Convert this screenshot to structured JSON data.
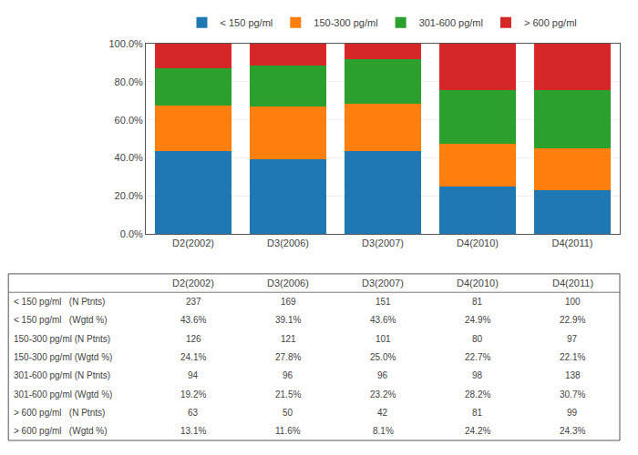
{
  "chart_data": {
    "type": "bar",
    "stacked": true,
    "categories": [
      "D2(2002)",
      "D3(2006)",
      "D3(2007)",
      "D4(2010)",
      "D4(2011)"
    ],
    "series": [
      {
        "name": "< 150 pg/ml",
        "values": [
          43.6,
          39.1,
          43.6,
          24.9,
          22.9
        ]
      },
      {
        "name": "150-300 pg/ml",
        "values": [
          24.1,
          27.8,
          25.0,
          22.7,
          22.1
        ]
      },
      {
        "name": "301-600 pg/ml",
        "values": [
          19.2,
          21.5,
          23.2,
          28.2,
          30.7
        ]
      },
      {
        "name": "> 600 pg/ml",
        "values": [
          13.1,
          11.6,
          8.1,
          24.2,
          24.3
        ]
      }
    ],
    "ylim": [
      0,
      100
    ],
    "yticks": [
      {
        "value": 0,
        "label": "0.0%"
      },
      {
        "value": 20,
        "label": "20.0%"
      },
      {
        "value": 40,
        "label": "40.0%"
      },
      {
        "value": 60,
        "label": "60.0%"
      },
      {
        "value": 80,
        "label": "80.0%"
      },
      {
        "value": 100,
        "label": "100.0%"
      }
    ],
    "grid": true,
    "legend": "top",
    "table": [
      {
        "label": "< 150 pg/ml   (N Ptnts)",
        "values": [
          "237",
          "169",
          "151",
          "81",
          "100"
        ]
      },
      {
        "label": "< 150 pg/ml   (Wgtd %)",
        "values": [
          "43.6%",
          "39.1%",
          "43.6%",
          "24.9%",
          "22.9%"
        ]
      },
      {
        "label": "150-300 pg/ml (N Ptnts)",
        "values": [
          "126",
          "121",
          "101",
          "80",
          "97"
        ]
      },
      {
        "label": "150-300 pg/ml (Wgtd %)",
        "values": [
          "24.1%",
          "27.8%",
          "25.0%",
          "22.7%",
          "22.1%"
        ]
      },
      {
        "label": "301-600 pg/ml (N Ptnts)",
        "values": [
          "94",
          "96",
          "96",
          "98",
          "138"
        ]
      },
      {
        "label": "301-600 pg/ml (Wgtd %)",
        "values": [
          "19.2%",
          "21.5%",
          "23.2%",
          "28.2%",
          "30.7%"
        ]
      },
      {
        "label": "> 600 pg/ml   (N Ptnts)",
        "values": [
          "63",
          "50",
          "42",
          "81",
          "99"
        ]
      },
      {
        "label": "> 600 pg/ml   (Wgtd %)",
        "values": [
          "13.1%",
          "11.6%",
          "8.1%",
          "24.2%",
          "24.3%"
        ]
      }
    ]
  }
}
